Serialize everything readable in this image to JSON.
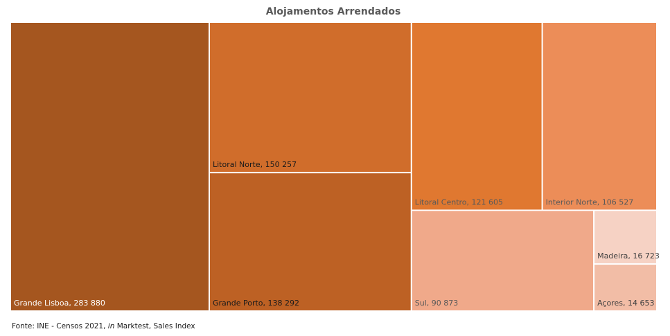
{
  "chart_data": {
    "type": "treemap",
    "title": "Alojamentos Arrendados",
    "categories": [
      "Grande Lisboa",
      "Litoral Norte",
      "Grande Porto",
      "Litoral Centro",
      "Interior Norte",
      "Sul",
      "Madeira",
      "Açores"
    ],
    "values": [
      283880,
      150257,
      138292,
      121605,
      106527,
      90873,
      16723,
      14653
    ],
    "value_labels": [
      "283 880",
      "150 257",
      "138 292",
      "121 605",
      "106 527",
      "90 873",
      "16 723",
      "14 653"
    ],
    "colors": [
      "#a5561f",
      "#d06d2b",
      "#bd6124",
      "#e07830",
      "#ec8d58",
      "#f0a98a",
      "#f6d2c4",
      "#f2bda6"
    ],
    "label_colors": [
      "#ffffff",
      "#1a1a1a",
      "#1a1a1a",
      "#595959",
      "#595959",
      "#595959",
      "#404040",
      "#404040"
    ],
    "source": {
      "prefix": "Fonte: INE - Censos 2021, ",
      "italic": "in",
      "suffix": " Marktest, Sales Index"
    }
  }
}
